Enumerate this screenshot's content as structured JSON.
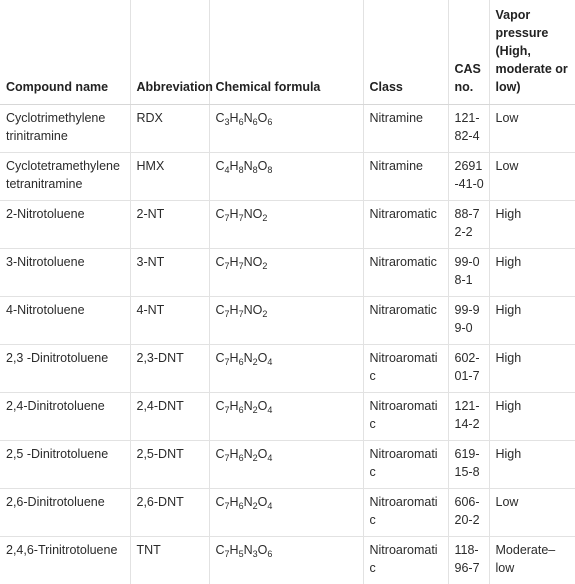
{
  "table": {
    "headers": [
      "Compound name",
      "Abbreviation",
      "Chemical formula",
      "Class",
      "CAS no.",
      "Vapor pressure (High, moderate or low)"
    ],
    "rows": [
      {
        "name": "Cyclotrimethylene trinitramine",
        "abbr": "RDX",
        "formula": [
          [
            "C",
            "3"
          ],
          [
            "H",
            "6"
          ],
          [
            "N",
            "6"
          ],
          [
            "O",
            "6"
          ]
        ],
        "class": "Nitramine",
        "cas": "121-82-4",
        "vp": "Low"
      },
      {
        "name": "Cyclotetramethylene tetranitramine",
        "abbr": "HMX",
        "formula": [
          [
            "C",
            "4"
          ],
          [
            "H",
            "8"
          ],
          [
            "N",
            "8"
          ],
          [
            "O",
            "8"
          ]
        ],
        "class": "Nitramine",
        "cas": "2691-41-0",
        "vp": "Low"
      },
      {
        "name": "2-Nitrotoluene",
        "abbr": "2-NT",
        "formula": [
          [
            "C",
            "7"
          ],
          [
            "H",
            "7"
          ],
          [
            "NO",
            "2"
          ]
        ],
        "class": "Nitraromatic",
        "cas": "88-72-2",
        "vp": "High"
      },
      {
        "name": "3-Nitrotoluene",
        "abbr": "3-NT",
        "formula": [
          [
            "C",
            "7"
          ],
          [
            "H",
            "7"
          ],
          [
            "NO",
            "2"
          ]
        ],
        "class": "Nitraromatic",
        "cas": "99-08-1",
        "vp": "High"
      },
      {
        "name": "4-Nitrotoluene",
        "abbr": "4-NT",
        "formula": [
          [
            "C",
            "7"
          ],
          [
            "H",
            "7"
          ],
          [
            "NO",
            "2"
          ]
        ],
        "class": "Nitraromatic",
        "cas": "99-99-0",
        "vp": "High"
      },
      {
        "name": "2,3 -Dinitrotoluene",
        "abbr": "2,3-DNT",
        "formula": [
          [
            "C",
            "7"
          ],
          [
            "H",
            "6"
          ],
          [
            "N",
            "2"
          ],
          [
            "O",
            "4"
          ]
        ],
        "class": "Nitroaromatic",
        "cas": "602-01-7",
        "vp": "High"
      },
      {
        "name": "2,4-Dinitrotoluene",
        "abbr": "2,4-DNT",
        "formula": [
          [
            "C",
            "7"
          ],
          [
            "H",
            "6"
          ],
          [
            "N",
            "2"
          ],
          [
            "O",
            "4"
          ]
        ],
        "class": "Nitroaromatic",
        "cas": "121-14-2",
        "vp": "High"
      },
      {
        "name": "2,5 -Dinitrotoluene",
        "abbr": "2,5-DNT",
        "formula": [
          [
            "C",
            "7"
          ],
          [
            "H",
            "6"
          ],
          [
            "N",
            "2"
          ],
          [
            "O",
            "4"
          ]
        ],
        "class": "Nitroaromatic",
        "cas": "619-15-8",
        "vp": "High"
      },
      {
        "name": "2,6-Dinitrotoluene",
        "abbr": "2,6-DNT",
        "formula": [
          [
            "C",
            "7"
          ],
          [
            "H",
            "6"
          ],
          [
            "N",
            "2"
          ],
          [
            "O",
            "4"
          ]
        ],
        "class": "Nitroaromatic",
        "cas": "606-20-2",
        "vp": "Low"
      },
      {
        "name": "2,4,6-Trinitrotoluene",
        "abbr": "TNT",
        "formula": [
          [
            "C",
            "7"
          ],
          [
            "H",
            "5"
          ],
          [
            "N",
            "3"
          ],
          [
            "O",
            "6"
          ]
        ],
        "class": "Nitroaromatic",
        "cas": "118-96-7",
        "vp": "Moderate–low"
      }
    ]
  }
}
